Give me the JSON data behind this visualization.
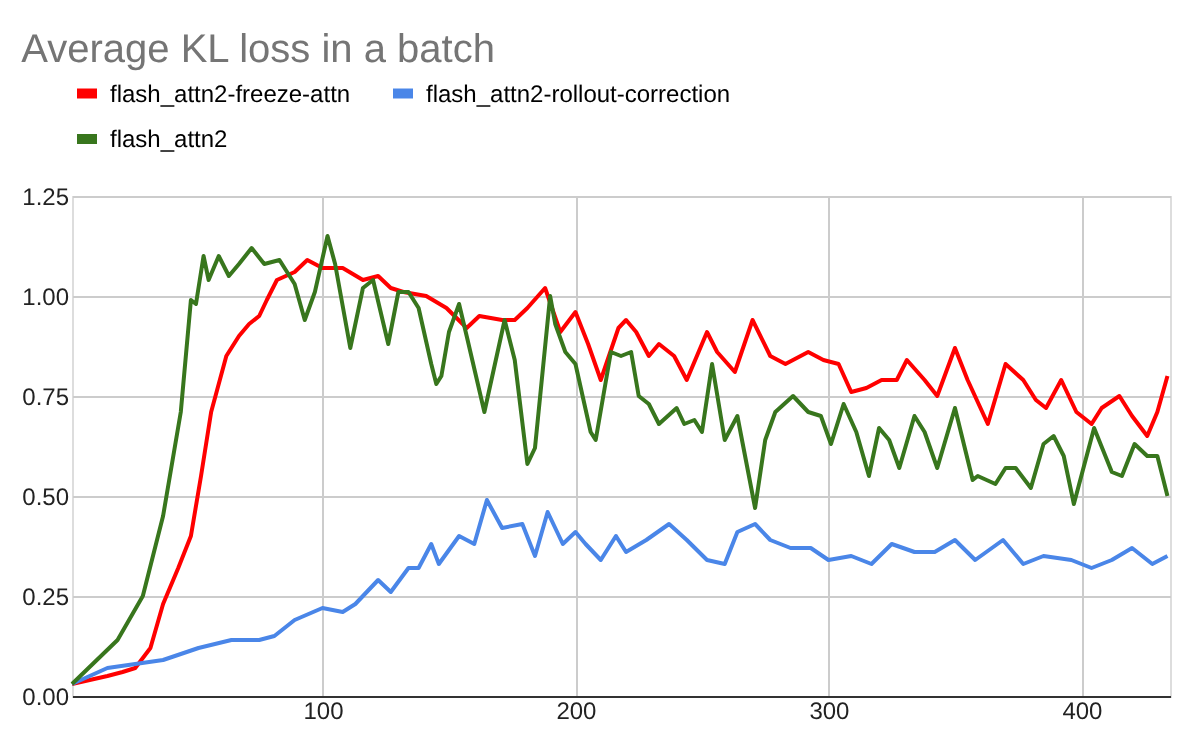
{
  "chart_data": {
    "type": "line",
    "title": "Average KL loss in a batch",
    "xlim": [
      1,
      435
    ],
    "xticks": [
      100,
      200,
      300,
      400
    ],
    "ylim": [
      0,
      1.25
    ],
    "yticks": [
      {
        "value": 0,
        "label": "0.00"
      },
      {
        "value": 0.25,
        "label": "0.25"
      },
      {
        "value": 0.5,
        "label": "0.50"
      },
      {
        "value": 0.75,
        "label": "0.75"
      },
      {
        "value": 1,
        "label": "1.00"
      },
      {
        "value": 1.25,
        "label": "1.25"
      }
    ],
    "grid": true,
    "legend": "top",
    "marker": "none",
    "line_style": "solid",
    "series": [
      {
        "name": "flash_attn2-freeze-attn",
        "color": "#ff0000",
        "x": [
          1,
          15,
          21,
          26,
          32,
          37,
          43,
          48,
          52,
          56,
          62,
          67,
          71,
          75,
          78,
          82,
          89,
          94,
          100,
          108,
          116,
          122,
          127,
          132,
          141,
          149,
          157,
          162,
          171,
          176,
          181,
          188,
          194,
          200,
          205,
          210,
          217,
          220,
          224,
          229,
          233,
          239,
          244,
          252,
          256,
          263,
          270,
          277,
          283,
          292,
          298,
          304,
          309,
          315,
          321,
          327,
          331,
          338,
          343,
          350,
          355,
          363,
          370,
          377,
          382,
          386,
          392,
          398,
          404,
          408,
          415,
          420,
          426,
          430,
          434
        ],
        "values": [
          0.03,
          0.05,
          0.06,
          0.07,
          0.12,
          0.23,
          0.32,
          0.4,
          0.55,
          0.71,
          0.85,
          0.9,
          0.93,
          0.95,
          0.99,
          1.04,
          1.06,
          1.09,
          1.07,
          1.07,
          1.04,
          1.05,
          1.02,
          1.01,
          1.0,
          0.97,
          0.92,
          0.95,
          0.94,
          0.94,
          0.97,
          1.02,
          0.91,
          0.96,
          0.88,
          0.79,
          0.92,
          0.94,
          0.91,
          0.85,
          0.88,
          0.85,
          0.79,
          0.91,
          0.86,
          0.81,
          0.94,
          0.85,
          0.83,
          0.86,
          0.84,
          0.83,
          0.76,
          0.77,
          0.79,
          0.79,
          0.84,
          0.79,
          0.75,
          0.87,
          0.79,
          0.68,
          0.83,
          0.79,
          0.74,
          0.72,
          0.79,
          0.71,
          0.68,
          0.72,
          0.75,
          0.7,
          0.65,
          0.71,
          0.8
        ]
      },
      {
        "name": "flash_attn2-rollout-correction",
        "color": "#4a86e8",
        "x": [
          1,
          15,
          37,
          51,
          64,
          75,
          81,
          89,
          100,
          108,
          113,
          122,
          127,
          134,
          138,
          143,
          146,
          154,
          160,
          165,
          171,
          179,
          184,
          189,
          195,
          200,
          204,
          210,
          216,
          220,
          228,
          237,
          244,
          252,
          259,
          264,
          271,
          277,
          285,
          293,
          300,
          309,
          317,
          325,
          334,
          342,
          350,
          358,
          369,
          377,
          385,
          396,
          404,
          412,
          420,
          428,
          434
        ],
        "values": [
          0.03,
          0.07,
          0.09,
          0.12,
          0.14,
          0.14,
          0.15,
          0.19,
          0.22,
          0.21,
          0.23,
          0.29,
          0.26,
          0.32,
          0.32,
          0.38,
          0.33,
          0.4,
          0.38,
          0.49,
          0.42,
          0.43,
          0.35,
          0.46,
          0.38,
          0.41,
          0.38,
          0.34,
          0.4,
          0.36,
          0.39,
          0.43,
          0.39,
          0.34,
          0.33,
          0.41,
          0.43,
          0.39,
          0.37,
          0.37,
          0.34,
          0.35,
          0.33,
          0.38,
          0.36,
          0.36,
          0.39,
          0.34,
          0.39,
          0.33,
          0.35,
          0.34,
          0.32,
          0.34,
          0.37,
          0.33,
          0.35
        ]
      },
      {
        "name": "flash_attn2",
        "color": "#38761d",
        "x": [
          1,
          19,
          29,
          37,
          44,
          48,
          50,
          53,
          55,
          59,
          63,
          67,
          72,
          77,
          83,
          89,
          93,
          97,
          102,
          105,
          111,
          116,
          120,
          126,
          130,
          134,
          138,
          143,
          145,
          147,
          150,
          154,
          157,
          164,
          172,
          176,
          181,
          184,
          190,
          192,
          196,
          200,
          206,
          208,
          214,
          218,
          222,
          225,
          229,
          233,
          240,
          243,
          247,
          250,
          254,
          259,
          264,
          271,
          275,
          279,
          286,
          292,
          297,
          301,
          306,
          311,
          316,
          320,
          324,
          328,
          334,
          338,
          343,
          350,
          357,
          359,
          366,
          370,
          374,
          380,
          385,
          389,
          393,
          397,
          405,
          412,
          416,
          421,
          426,
          430,
          434
        ],
        "values": [
          0.03,
          0.14,
          0.25,
          0.45,
          0.71,
          0.99,
          0.98,
          1.1,
          1.04,
          1.1,
          1.05,
          1.08,
          1.12,
          1.08,
          1.09,
          1.03,
          0.94,
          1.01,
          1.15,
          1.08,
          0.87,
          1.02,
          1.04,
          0.88,
          1.01,
          1.01,
          0.97,
          0.83,
          0.78,
          0.8,
          0.91,
          0.98,
          0.9,
          0.71,
          0.94,
          0.84,
          0.58,
          0.62,
          1.0,
          0.93,
          0.86,
          0.83,
          0.66,
          0.64,
          0.86,
          0.85,
          0.86,
          0.75,
          0.73,
          0.68,
          0.72,
          0.68,
          0.69,
          0.66,
          0.83,
          0.64,
          0.7,
          0.47,
          0.64,
          0.71,
          0.75,
          0.71,
          0.7,
          0.63,
          0.73,
          0.66,
          0.55,
          0.67,
          0.64,
          0.57,
          0.7,
          0.66,
          0.57,
          0.72,
          0.54,
          0.55,
          0.53,
          0.57,
          0.57,
          0.52,
          0.63,
          0.65,
          0.6,
          0.48,
          0.67,
          0.56,
          0.55,
          0.63,
          0.6,
          0.6,
          0.5
        ]
      }
    ]
  }
}
